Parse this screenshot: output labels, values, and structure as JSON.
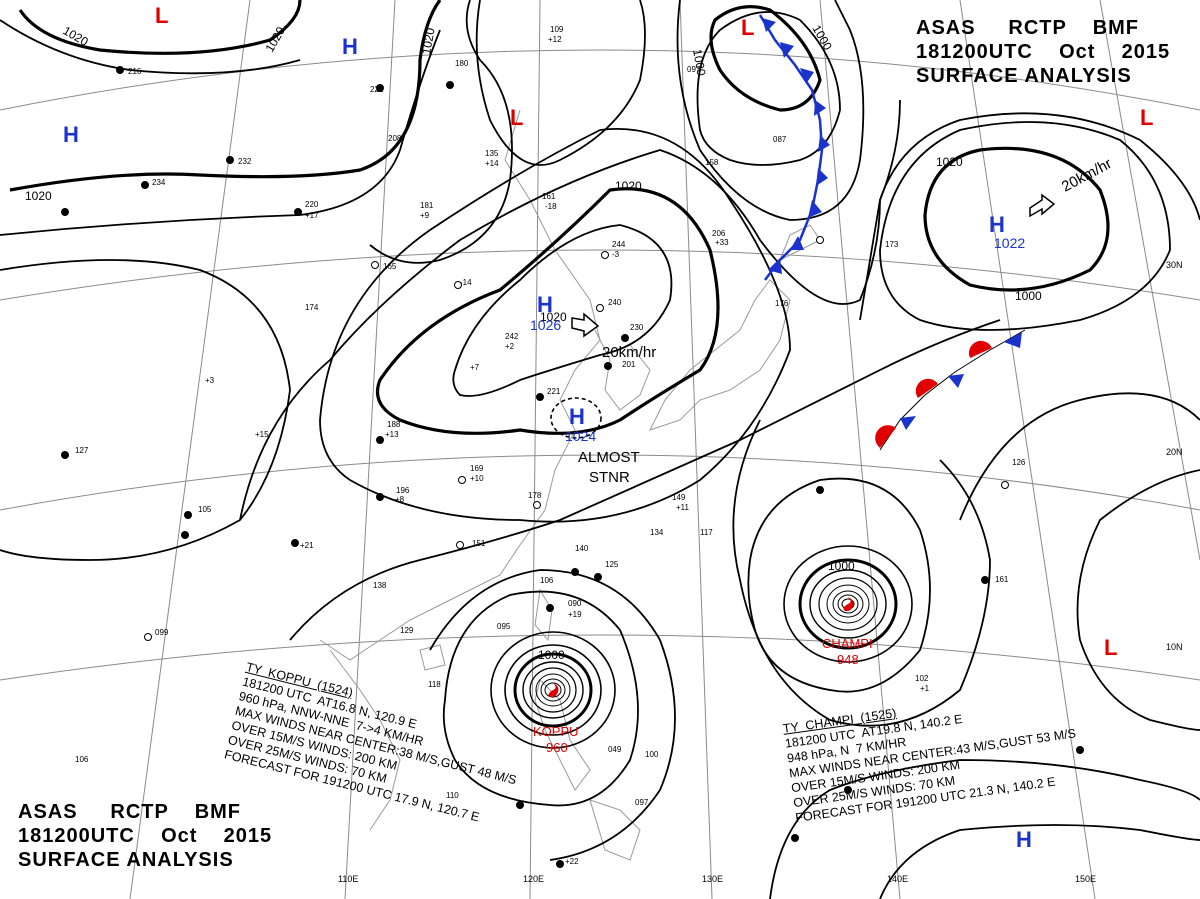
{
  "header": {
    "line1": [
      "ASAS",
      "RCTP",
      "BMF"
    ],
    "line2": [
      "181200UTC",
      "Oct",
      "2015"
    ],
    "line3": "SURFACE ANALYSIS"
  },
  "footer": {
    "line1": [
      "ASAS",
      "RCTP",
      "BMF"
    ],
    "line2": [
      "181200UTC",
      "Oct",
      "2015"
    ],
    "line3": "SURFACE ANALYSIS"
  },
  "colors": {
    "high": "#1a33cc",
    "low": "#e00000",
    "cold_front": "#1a33cc",
    "warm_front": "#e00000",
    "isobar": "#000000",
    "grid": "#808080",
    "coast": "#999999"
  },
  "lon_labels": [
    "110E",
    "120E",
    "130E",
    "140E",
    "150E"
  ],
  "lat_labels": [
    "30N",
    "20N",
    "10N"
  ],
  "isobar_labels": [
    "1020",
    "1020",
    "1020",
    "1020",
    "1020",
    "1020",
    "1020",
    "1000",
    "1000",
    "1000",
    "1000",
    "1000"
  ],
  "pressure_systems": [
    {
      "type": "H",
      "value": ""
    },
    {
      "type": "H",
      "value": ""
    },
    {
      "type": "L",
      "value": ""
    },
    {
      "type": "L",
      "value": ""
    },
    {
      "type": "L",
      "value": ""
    },
    {
      "type": "L",
      "value": ""
    },
    {
      "type": "H",
      "value": "1026"
    },
    {
      "type": "H",
      "value": "1024"
    },
    {
      "type": "H",
      "value": "1022"
    },
    {
      "type": "L",
      "value": ""
    },
    {
      "type": "H",
      "value": ""
    }
  ],
  "motion_labels": [
    "20km/hr",
    "20km/hr"
  ],
  "stationary_note": [
    "ALMOST",
    "STNR"
  ],
  "typhoons": [
    {
      "name": "KOPPU",
      "pressure": "960"
    },
    {
      "name": "CHAMPI",
      "pressure": "948"
    }
  ],
  "bulletins": {
    "koppu": [
      "TY  KOPPU  (1524)",
      "181200 UTC  AT16.8 N, 120.9 E",
      "960 hPa, NNW-NNE  7->4 KM/HR",
      "MAX WINDS NEAR CENTER:38 M/S,GUST 48 M/S",
      "OVER 15M/S WINDS: 200 KM",
      "OVER 25M/S WINDS: 70 KM",
      "FORECAST FOR 191200 UTC 17.9 N, 120.7 E"
    ],
    "champi": [
      "TY  CHAMPI  (1525)",
      "181200 UTC  AT19.8 N, 140.2 E",
      "948 hPa, N  7 KM/HR",
      "MAX WINDS NEAR CENTER:43 M/S,GUST 53 M/S",
      "OVER 15M/S WINDS: 200 KM",
      "OVER 25M/S WINDS: 70 KM",
      "FORECAST FOR 191200 UTC 21.3 N, 140.2 E"
    ]
  },
  "station_labels": [
    "234",
    "220",
    "181",
    "165",
    "174",
    "232",
    "221",
    "208",
    "180",
    "135",
    "161",
    "244",
    "240",
    "242",
    "230",
    "201",
    "221",
    "188",
    "169",
    "196",
    "178",
    "151",
    "140",
    "125",
    "138",
    "129",
    "106",
    "095",
    "090",
    "118",
    "105",
    "127",
    "099",
    "106",
    "110",
    "097",
    "100",
    "149",
    "134",
    "117",
    "173",
    "206",
    "176",
    "126",
    "161",
    "102",
    "087",
    "097",
    "049",
    "216",
    "109",
    "158",
    "+12",
    "+17",
    "+15",
    "+13",
    "+9",
    "+19",
    "+8",
    "+10",
    "+7",
    "+14",
    "-14",
    "-18",
    "-3",
    "+33",
    "+11",
    "+3",
    "+1",
    "+22",
    "+21",
    "+2"
  ]
}
